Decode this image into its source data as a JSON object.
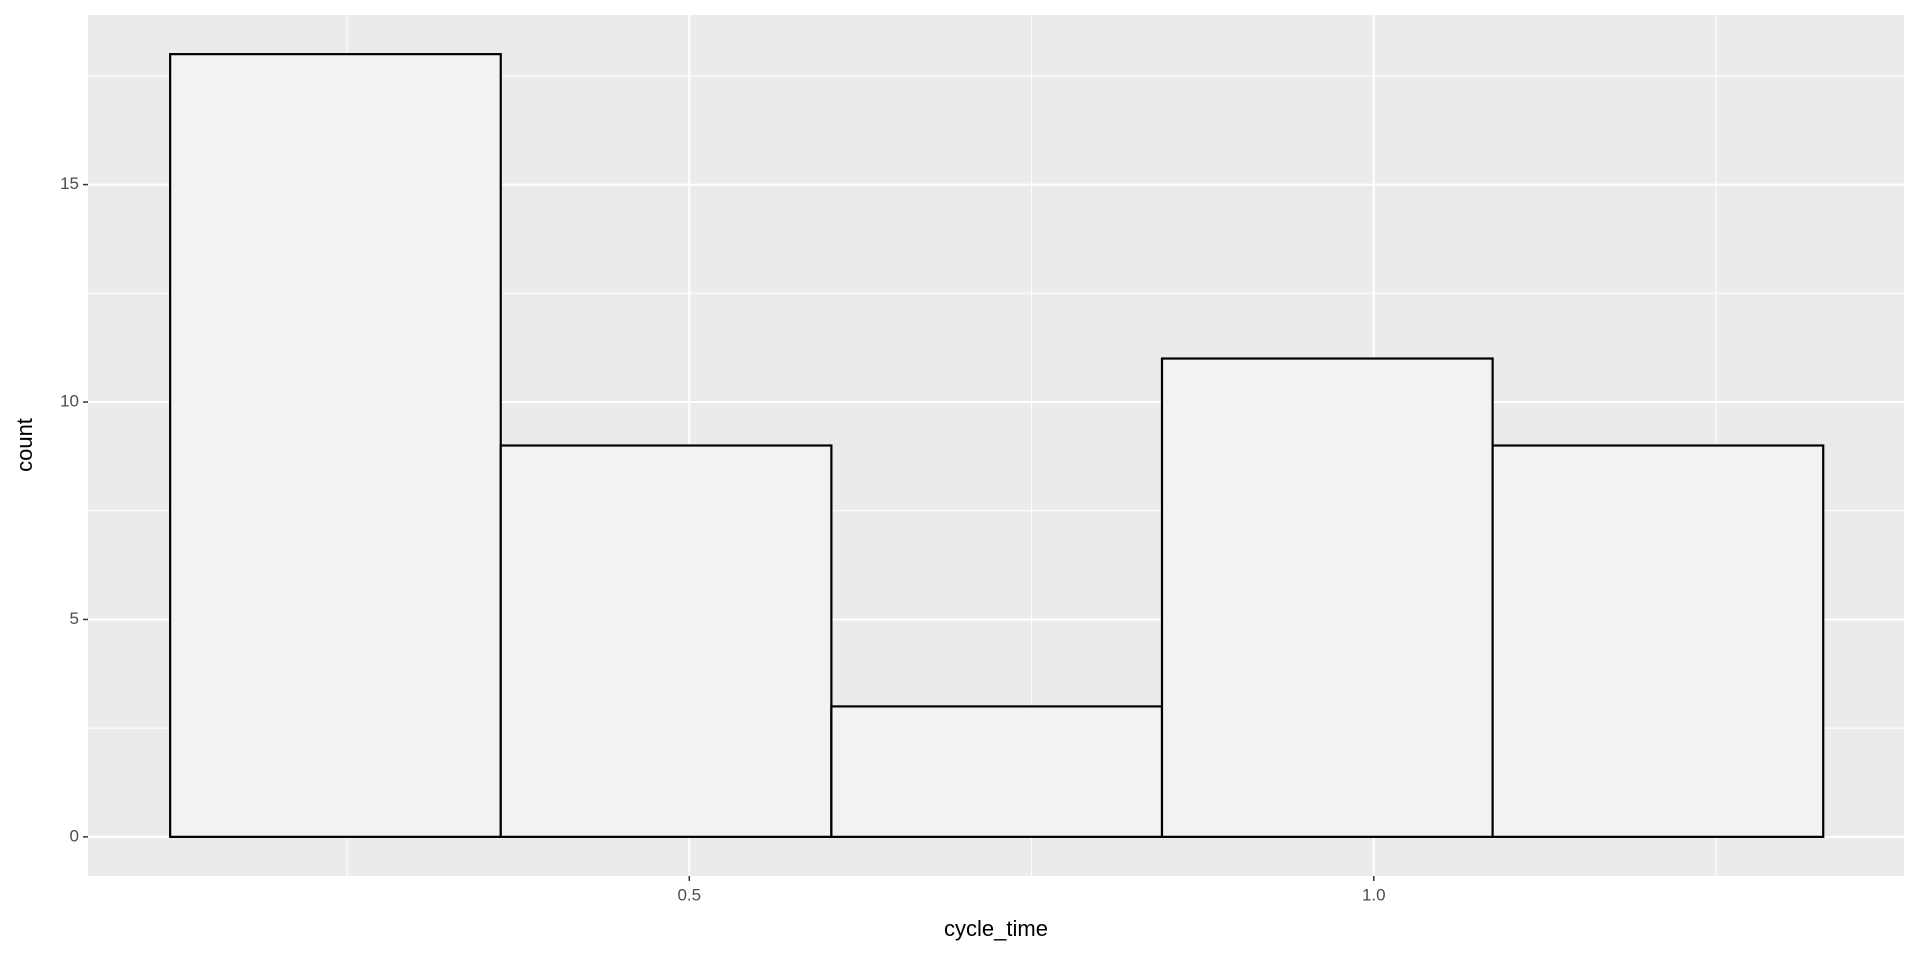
{
  "chart_data": {
    "type": "histogram",
    "x_label": "cycle_time",
    "y_label": "count",
    "bins": [
      0.1208,
      0.3623,
      0.6038,
      0.8453,
      1.0868,
      1.3283
    ],
    "values": [
      18,
      9,
      3,
      11,
      9
    ],
    "color": "#f2f2f2",
    "edge_color": "#000000",
    "xlim": [
      0.0608,
      1.3873
    ],
    "xticks": [
      0.5,
      {
        "value": 1.0,
        "label": "1.0"
      }
    ],
    "ylim": [
      -0.9,
      18.9
    ],
    "yticks": [
      0,
      5,
      10,
      15
    ],
    "grid": true
  }
}
